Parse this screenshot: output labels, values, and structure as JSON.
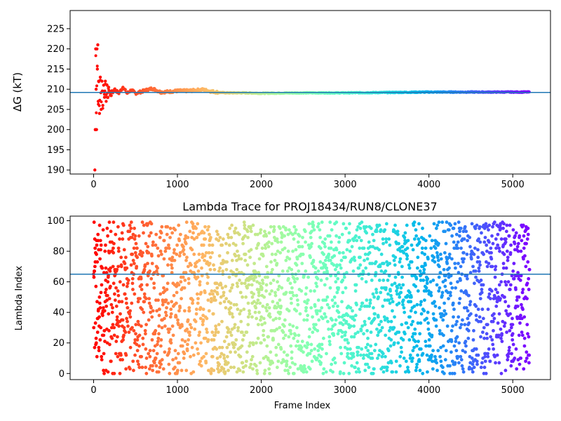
{
  "chart_data": [
    {
      "type": "scatter",
      "title": "",
      "xlabel": "",
      "ylabel": "ΔG (kT)",
      "xlim": [
        -280,
        5450
      ],
      "ylim": [
        189,
        229.5
      ],
      "xticks": [
        "0",
        "1000",
        "2000",
        "3000",
        "4000",
        "5000"
      ],
      "yticks": [
        "190",
        "195",
        "200",
        "205",
        "210",
        "215",
        "220",
        "225"
      ],
      "colormap": "rainbow",
      "reference_line": {
        "y": 209.2,
        "color": "#1f77b4"
      },
      "series": [
        {
          "x": [
            15,
            20,
            25,
            30,
            35,
            40,
            45,
            50,
            55,
            60,
            70,
            80,
            90,
            100,
            110,
            120,
            130,
            140,
            150,
            160,
            170,
            180,
            200,
            250,
            300,
            350,
            400,
            450,
            500,
            600,
            700,
            800,
            900,
            1000,
            1100,
            1200,
            1300,
            1400,
            1500,
            1600,
            1800,
            2000,
            2500,
            3000,
            3500,
            4000,
            4500,
            5000,
            5200
          ],
          "y": [
            190,
            200,
            220,
            210,
            200,
            220,
            215,
            221,
            207,
            212,
            204,
            213,
            205,
            212,
            206,
            211,
            208,
            212,
            207,
            211,
            208,
            210.5,
            208.5,
            210,
            209,
            210.5,
            209,
            209.8,
            209,
            209.6,
            210.2,
            209.3,
            209.4,
            209.6,
            209.6,
            209.7,
            209.9,
            209.5,
            209.2,
            209.1,
            209.1,
            209.0,
            209.1,
            209.1,
            209.2,
            209.3,
            209.3,
            209.3,
            209.3
          ]
        }
      ]
    },
    {
      "type": "scatter",
      "title": "Lambda Trace for PROJ18434/RUN8/CLONE37",
      "xlabel": "Frame Index",
      "ylabel": "Lambda Index",
      "xlim": [
        -280,
        5450
      ],
      "ylim": [
        -4,
        103
      ],
      "xticks": [
        "0",
        "1000",
        "2000",
        "3000",
        "4000",
        "5000"
      ],
      "yticks": [
        "0",
        "20",
        "40",
        "60",
        "80",
        "100"
      ],
      "colormap": "rainbow",
      "reference_line": {
        "y": 65,
        "color": "#1f77b4"
      },
      "series": [
        {
          "n_points": 5200,
          "x_range": [
            0,
            5200
          ],
          "y_range": [
            0,
            99
          ],
          "distribution": "lambda index roughly uniform over 0–99 at every frame"
        }
      ]
    }
  ]
}
